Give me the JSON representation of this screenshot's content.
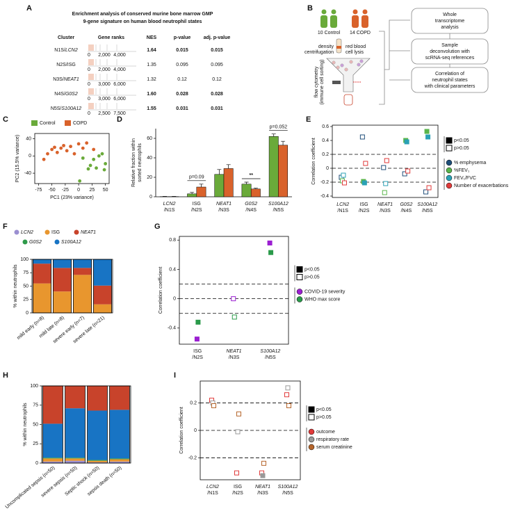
{
  "table": {
    "panel": "A",
    "title": [
      "Enrichment analysis of conserved murine bone marrow GMP",
      "9-gene signature on human blood neutrophil states"
    ],
    "columns": [
      "Cluster",
      "Gene ranks",
      "NES",
      "p-value",
      "adj. p-value"
    ],
    "rows": [
      {
        "cluster": "N1S/",
        "gene": "LCN2",
        "italic": true,
        "bold": true,
        "rank_axis": [
          "0",
          "2,000",
          "4,000"
        ],
        "nes": "1.64",
        "p": "0.015",
        "adj_p": "0.015"
      },
      {
        "cluster": "N2S/",
        "gene": "ISG",
        "italic": false,
        "bold": false,
        "rank_axis": [
          "0",
          "2,000",
          "4,000"
        ],
        "nes": "1.35",
        "p": "0.095",
        "adj_p": "0.095"
      },
      {
        "cluster": "N3S/",
        "gene": "NEAT1",
        "italic": true,
        "bold": false,
        "rank_axis": [
          "0",
          "3,000",
          "6,000"
        ],
        "nes": "1.32",
        "p": "0.12",
        "adj_p": "0.12"
      },
      {
        "cluster": "N4S/",
        "gene": "G0S2",
        "italic": true,
        "bold": true,
        "rank_axis": [
          "0",
          "3,000",
          "6,000"
        ],
        "nes": "1.60",
        "p": "0.028",
        "adj_p": "0.028"
      },
      {
        "cluster": "N5S/",
        "gene": "S100A12",
        "italic": true,
        "bold": true,
        "rank_axis": [
          "0",
          "2,500",
          "7,500"
        ],
        "nes": "1.55",
        "p": "0.031",
        "adj_p": "0.031"
      }
    ]
  },
  "diagram": {
    "panel": "B",
    "groups": [
      "10 Control",
      "14 COPD"
    ],
    "steps": [
      [
        "density",
        "centrifugation"
      ],
      [
        "red blood",
        "cell lysis"
      ]
    ],
    "sorting": [
      "flow cytometry",
      "(immune cell sorting)"
    ],
    "boxes": [
      [
        "Whole",
        "transcriptome",
        "analysis"
      ],
      [
        "Sample",
        "deconvolution with",
        "scRNA-seq references"
      ],
      [
        "Correlation of",
        "neutrophil states",
        "with clinical parameters"
      ]
    ]
  },
  "chart_data": [
    {
      "panel": "C",
      "type": "scatter",
      "xlabel": "PC1 (23% variance)",
      "ylabel": "PC2 (15.5% variance)",
      "xlim": [
        -82,
        57
      ],
      "ylim": [
        -64,
        52
      ],
      "xticks": [
        -75,
        -50,
        -25,
        0,
        25,
        50
      ],
      "yticks": [
        -40,
        0,
        40
      ],
      "series": [
        {
          "name": "Control",
          "color": "#6aaa3a",
          "x": [
            8,
            18,
            22,
            28,
            33,
            38,
            44,
            48,
            50,
            2
          ],
          "y": [
            -5,
            -30,
            -22,
            -8,
            -28,
            0,
            5,
            -32,
            -18,
            -58
          ]
        },
        {
          "name": "COPD",
          "color": "#d9622b",
          "x": [
            -65,
            -58,
            -50,
            -45,
            -40,
            -33,
            -28,
            -22,
            -15,
            -8,
            0,
            8,
            15,
            28
          ],
          "y": [
            -8,
            5,
            15,
            20,
            8,
            18,
            24,
            12,
            22,
            5,
            28,
            18,
            30,
            15
          ]
        }
      ]
    },
    {
      "panel": "D",
      "type": "bar",
      "ylabel": [
        "Relative fraction within",
        "sorted neutrophils"
      ],
      "categories": [
        "LCN2",
        "ISG",
        "NEAT1",
        "G0S2",
        "S100A12"
      ],
      "subcategories": [
        "/N1S",
        "/N2S",
        "/N3S",
        "/N4S",
        "/N5S"
      ],
      "italic": [
        true,
        false,
        true,
        true,
        true
      ],
      "ylim": [
        0,
        70
      ],
      "yticks": [
        0,
        20,
        40,
        60
      ],
      "series": [
        {
          "color": "#6aaa3a",
          "values": [
            0.2,
            3,
            23,
            13,
            62
          ],
          "errors": [
            0.2,
            1.5,
            5,
            2,
            2.5
          ]
        },
        {
          "color": "#d9622b",
          "values": [
            0.2,
            10,
            29,
            8,
            53
          ],
          "errors": [
            0.2,
            3,
            4,
            0.8,
            4
          ]
        }
      ],
      "annotations": [
        {
          "text": "p=0.09",
          "category": 1
        },
        {
          "text": "**",
          "category": 3
        },
        {
          "text": "p=0.052",
          "category": 4
        }
      ]
    },
    {
      "panel": "E",
      "type": "dot",
      "ylabel": "Correlation coefficient",
      "categories": [
        "LCN2",
        "ISG",
        "NEAT1",
        "G0S2",
        "S100A12"
      ],
      "subcategories": [
        "/N1S",
        "/N2S",
        "/N3S",
        "/N4S",
        "/N5S"
      ],
      "italic": [
        true,
        false,
        true,
        true,
        true
      ],
      "ylim": [
        -0.42,
        0.62
      ],
      "yticks": [
        -0.4,
        -0.2,
        0,
        0.2,
        0.4,
        0.6
      ],
      "ref_lines": [
        -0.2,
        0,
        0.2
      ],
      "sig_legend": [
        "p<0.05",
        "p>0.05"
      ],
      "series": [
        {
          "name": "% emphysema",
          "color": "#1f4e79",
          "values": [
            -0.13,
            0.45,
            0.01,
            -0.08,
            -0.34
          ],
          "significant": [
            false,
            false,
            false,
            false,
            false
          ]
        },
        {
          "name": "%FEV₁",
          "color": "#5ab54b",
          "values": [
            -0.18,
            -0.19,
            -0.35,
            0.4,
            0.53
          ],
          "significant": [
            false,
            true,
            false,
            true,
            true
          ]
        },
        {
          "name": "FEV₁/FVC",
          "color": "#2aa1b5",
          "values": [
            -0.1,
            -0.21,
            -0.22,
            0.38,
            0.45
          ],
          "significant": [
            false,
            true,
            false,
            true,
            true
          ]
        },
        {
          "name": "Number of exacerbations",
          "color": "#e03a3a",
          "values": [
            -0.21,
            0.07,
            0.11,
            -0.04,
            -0.28
          ],
          "significant": [
            false,
            false,
            false,
            false,
            false
          ]
        }
      ]
    },
    {
      "panel": "F",
      "type": "stacked_bar",
      "ylabel": "% within neutrophils",
      "categories": [
        "mild early (n=8)",
        "mild late (n=8)",
        "severe early (n=7)",
        "severe late (n=21)"
      ],
      "ylim": [
        0,
        100
      ],
      "yticks": [
        0,
        25,
        50,
        75,
        100
      ],
      "series": [
        {
          "name": "LCN2",
          "italic": true,
          "color": "#9b8fd1",
          "values": [
            0,
            0,
            0,
            0
          ]
        },
        {
          "name": "ISG",
          "italic": false,
          "color": "#e8962e",
          "values": [
            55,
            40,
            71,
            16
          ]
        },
        {
          "name": "NEAT1",
          "italic": true,
          "color": "#c8432b",
          "values": [
            37,
            44,
            13,
            35
          ]
        },
        {
          "name": "G0S2",
          "italic": true,
          "color": "#2e9a4a",
          "values": [
            0,
            0,
            0,
            0
          ]
        },
        {
          "name": "S100A12",
          "italic": true,
          "color": "#1874c4",
          "values": [
            8,
            16,
            16,
            49
          ]
        }
      ]
    },
    {
      "panel": "G",
      "type": "dot",
      "ylabel": "Correlation coefficient",
      "categories": [
        "ISG",
        "NEAT1",
        "S100A12"
      ],
      "subcategories": [
        "/N2S",
        "/N3S",
        "/N5S"
      ],
      "italic": [
        false,
        true,
        true
      ],
      "ylim": [
        -0.62,
        0.85
      ],
      "yticks": [
        -0.4,
        0,
        0.4,
        0.8
      ],
      "ref_lines": [
        -0.2,
        0,
        0.2
      ],
      "sig_legend": [
        "p<0.05",
        "p>0.05"
      ],
      "series": [
        {
          "name": "COVID-19 severity",
          "color": "#9b1fd1",
          "values": [
            -0.55,
            0,
            0.76
          ],
          "significant": [
            true,
            false,
            true
          ]
        },
        {
          "name": "WHO max score",
          "color": "#2a9a4a",
          "values": [
            -0.32,
            -0.25,
            0.63
          ],
          "significant": [
            true,
            false,
            true
          ]
        }
      ]
    },
    {
      "panel": "H",
      "type": "stacked_bar",
      "ylabel": "% within neutrophils",
      "categories": [
        "Uncomplicated sepsis (n=50)",
        "severe sepsis (n=50)",
        "Septic shock (n=50)",
        "sepsis death (n=50)"
      ],
      "ylim": [
        0,
        100
      ],
      "yticks": [
        0,
        25,
        50,
        75,
        100
      ],
      "series": [
        {
          "color": "#9b8fd1",
          "values": [
            2,
            3,
            1,
            2
          ]
        },
        {
          "color": "#e8962e",
          "values": [
            4,
            3,
            2,
            3
          ]
        },
        {
          "color": "#2e9a4a",
          "values": [
            1,
            1,
            1,
            1
          ]
        },
        {
          "color": "#1874c4",
          "values": [
            44,
            64,
            64,
            63
          ]
        },
        {
          "color": "#c8432b",
          "values": [
            49,
            29,
            32,
            31
          ]
        }
      ]
    },
    {
      "panel": "I",
      "type": "dot",
      "ylabel": "Correlation coefficient",
      "categories": [
        "LCN2",
        "ISG",
        "NEAT1",
        "S100A12"
      ],
      "subcategories": [
        "/N1S",
        "/N2S",
        "/N3S",
        "/N5S"
      ],
      "italic": [
        true,
        false,
        true,
        true
      ],
      "ylim": [
        -0.36,
        0.36
      ],
      "yticks": [
        -0.2,
        0,
        0.2
      ],
      "ref_lines": [
        -0.2,
        0,
        0.2
      ],
      "sig_legend": [
        "p<0.05",
        "p>0.05"
      ],
      "series": [
        {
          "name": "outcome",
          "color": "#e03a3a",
          "values": [
            0.22,
            -0.31,
            -0.31,
            0.26
          ],
          "significant": [
            false,
            false,
            false,
            false
          ]
        },
        {
          "name": "respiratory rate",
          "color": "#999999",
          "values": [
            0.2,
            -0.01,
            -0.33,
            0.31
          ],
          "significant": [
            false,
            false,
            true,
            false
          ]
        },
        {
          "name": "serum creatinine",
          "color": "#b5652b",
          "values": [
            0.18,
            0.12,
            -0.24,
            0.18
          ],
          "significant": [
            false,
            false,
            false,
            false
          ]
        }
      ]
    }
  ]
}
